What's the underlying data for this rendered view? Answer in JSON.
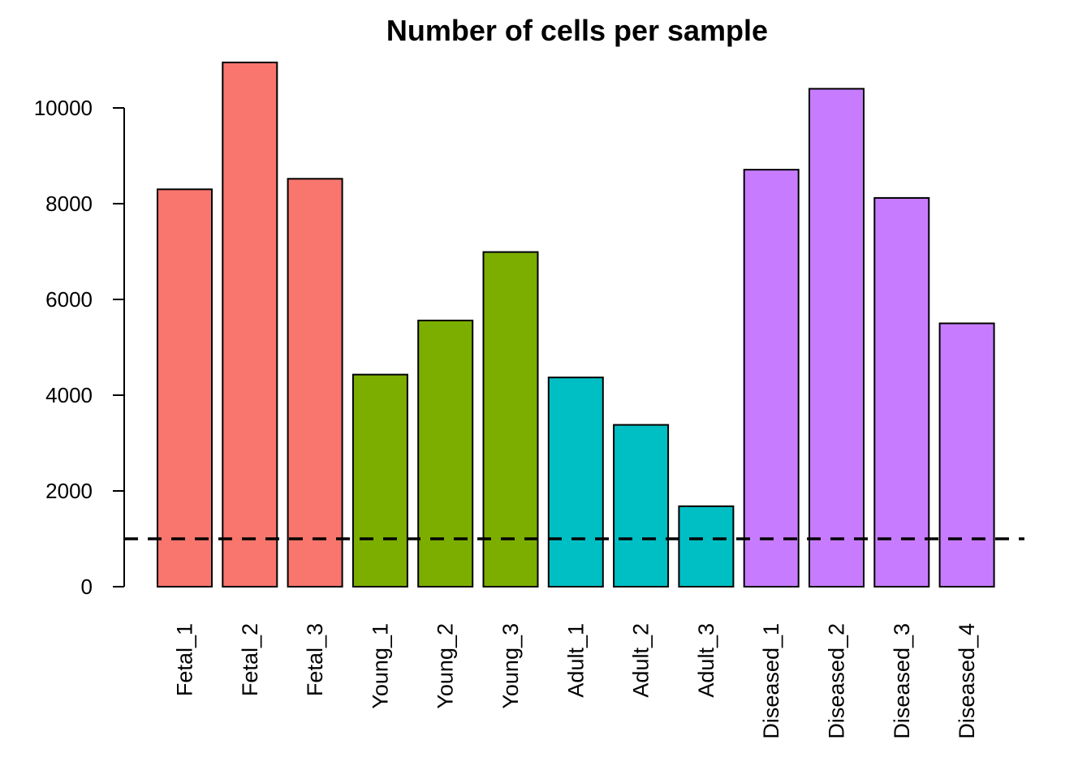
{
  "chart_data": {
    "type": "bar",
    "title": "Number of cells per sample",
    "xlabel": "",
    "ylabel": "",
    "categories": [
      "Fetal_1",
      "Fetal_2",
      "Fetal_3",
      "Young_1",
      "Young_2",
      "Young_3",
      "Adult_1",
      "Adult_2",
      "Adult_3",
      "Diseased_1",
      "Diseased_2",
      "Diseased_3",
      "Diseased_4"
    ],
    "values": [
      8300,
      10950,
      8520,
      4430,
      5560,
      6990,
      4370,
      3380,
      1680,
      8710,
      10400,
      8120,
      5500
    ],
    "colors": [
      "#F8766D",
      "#F8766D",
      "#F8766D",
      "#7CAE00",
      "#7CAE00",
      "#7CAE00",
      "#00BFC4",
      "#00BFC4",
      "#00BFC4",
      "#C77CFF",
      "#C77CFF",
      "#C77CFF",
      "#C77CFF"
    ],
    "ylim": [
      0,
      10950
    ],
    "yticks": [
      0,
      2000,
      4000,
      6000,
      8000,
      10000
    ],
    "reference_line": {
      "y": 1000,
      "style": "dashed",
      "color": "#000000"
    },
    "grid": false,
    "legend": "none"
  }
}
